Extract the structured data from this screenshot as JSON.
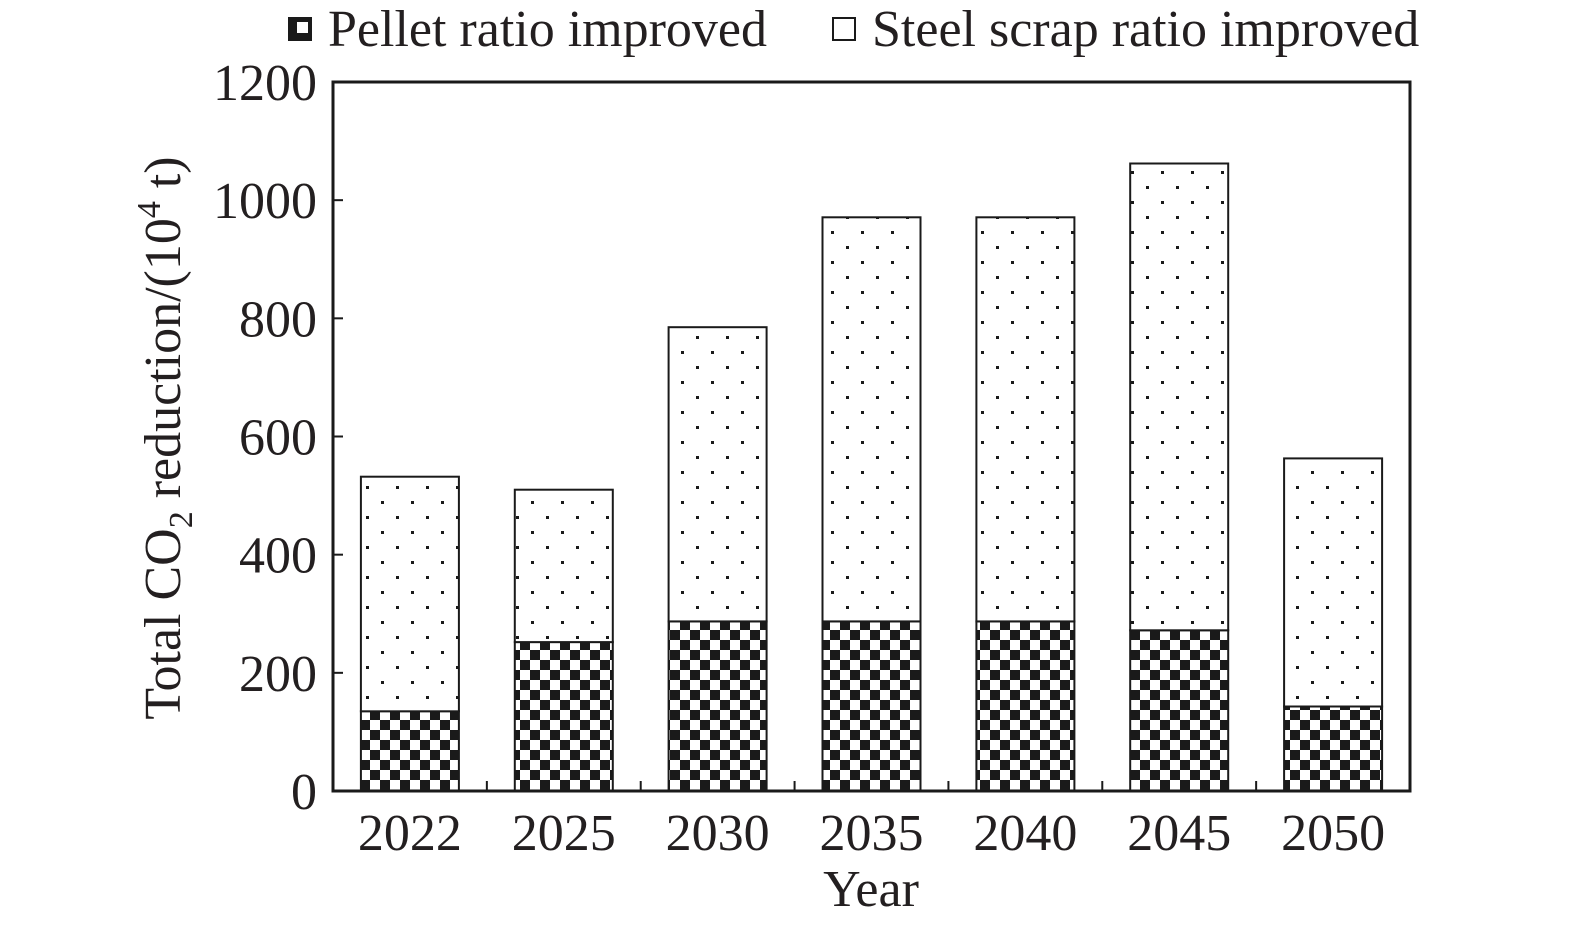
{
  "chart_data": {
    "type": "bar",
    "stacked": true,
    "categories": [
      "2022",
      "2025",
      "2030",
      "2035",
      "2040",
      "2045",
      "2050"
    ],
    "series": [
      {
        "name": "Pellet ratio improved",
        "values": [
          135,
          252,
          287,
          287,
          287,
          272,
          143
        ],
        "pattern": "checkerboard"
      },
      {
        "name": "Steel scrap ratio improved",
        "values": [
          397,
          258,
          498,
          684,
          684,
          790,
          420
        ],
        "pattern": "dots"
      }
    ],
    "xlabel": "Year",
    "ylabel": {
      "prefix": "Total CO",
      "subscript": "2",
      "middle": " reduction/(10",
      "superscript": "4",
      "suffix": " t)"
    },
    "ylim": [
      0,
      1200
    ],
    "yticks": [
      "0",
      "200",
      "400",
      "600",
      "800",
      "1000",
      "1200"
    ],
    "legend_position": "top",
    "grid": false
  }
}
